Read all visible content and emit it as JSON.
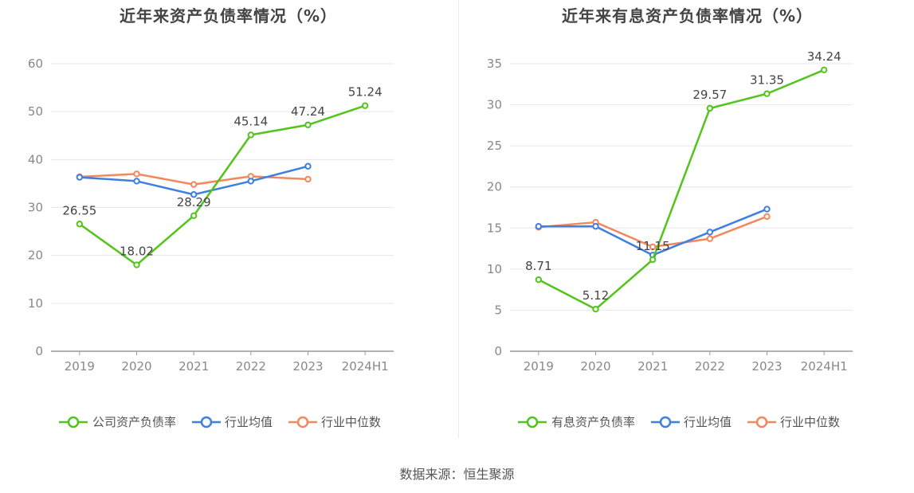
{
  "colors": {
    "company": "#52c41a",
    "industry_avg": "#3e7fe0",
    "industry_median": "#f2885d",
    "grid": "#e6e6f0",
    "axis": "#999999",
    "tick_text": "#888888",
    "label_text": "#444444"
  },
  "source": "数据来源：恒生聚源",
  "chart_data": [
    {
      "type": "line",
      "title": "近年来资产负债率情况（%）",
      "categories": [
        "2019",
        "2020",
        "2021",
        "2022",
        "2023",
        "2024H1"
      ],
      "ylim": [
        0,
        60
      ],
      "yticks": [
        0,
        10,
        20,
        30,
        40,
        50,
        60
      ],
      "legend_position": "bottom",
      "series": [
        {
          "name": "公司资产负债率",
          "role": "company",
          "values": [
            26.55,
            18.02,
            28.29,
            45.14,
            47.24,
            51.24
          ],
          "labels": [
            "26.55",
            "18.02",
            "28.29",
            "45.14",
            "47.24",
            "51.24"
          ]
        },
        {
          "name": "行业均值",
          "role": "industry_avg",
          "values": [
            36.3,
            35.5,
            32.7,
            35.5,
            38.6,
            null
          ]
        },
        {
          "name": "行业中位数",
          "role": "industry_median",
          "values": [
            36.4,
            37.0,
            34.8,
            36.5,
            35.9,
            null
          ]
        }
      ]
    },
    {
      "type": "line",
      "title": "近年来有息资产负债率情况（%）",
      "categories": [
        "2019",
        "2020",
        "2021",
        "2022",
        "2023",
        "2024H1"
      ],
      "ylim": [
        0,
        35
      ],
      "yticks": [
        0,
        5,
        10,
        15,
        20,
        25,
        30,
        35
      ],
      "legend_position": "bottom",
      "series": [
        {
          "name": "有息资产负债率",
          "role": "company",
          "values": [
            8.71,
            5.12,
            11.15,
            29.57,
            31.35,
            34.24
          ],
          "labels": [
            "8.71",
            "5.12",
            "11.15",
            "29.57",
            "31.35",
            "34.24"
          ]
        },
        {
          "name": "行业均值",
          "role": "industry_avg",
          "values": [
            15.2,
            15.2,
            11.7,
            14.5,
            17.3,
            null
          ]
        },
        {
          "name": "行业中位数",
          "role": "industry_median",
          "values": [
            15.1,
            15.7,
            12.7,
            13.7,
            16.4,
            null
          ]
        }
      ]
    }
  ]
}
